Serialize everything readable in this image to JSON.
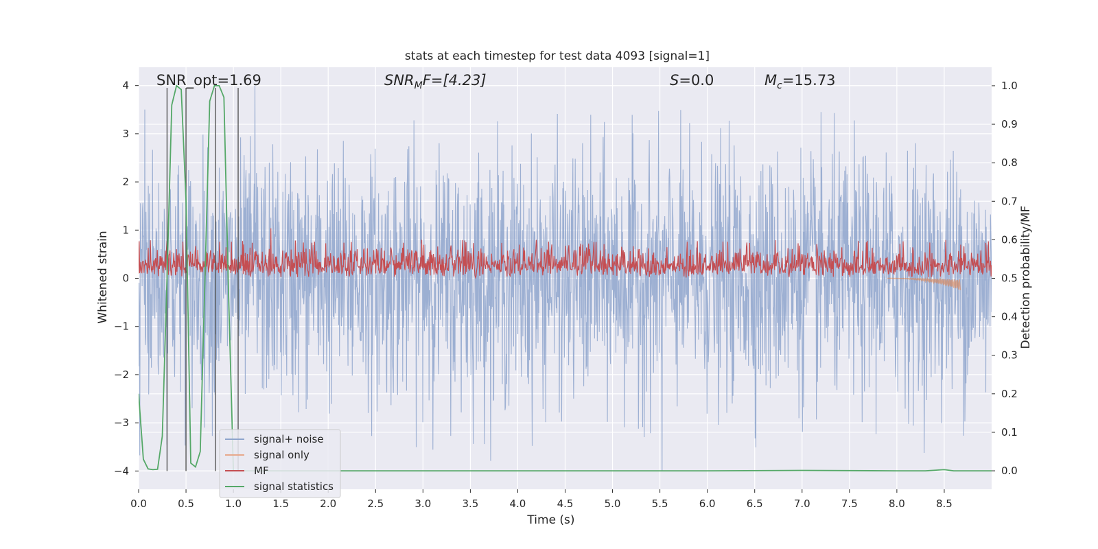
{
  "chart_data": {
    "type": "line",
    "title": "stats at each timestep for test data 4093 [signal=1]",
    "xlabel": "Time (s)",
    "ylabel": "Whitened strain",
    "ylabel_right": "Detection probability/MF",
    "xlim": [
      0.0,
      9.0
    ],
    "ylim": [
      -4.38,
      4.38
    ],
    "ylim_right": [
      -0.048,
      1.048
    ],
    "xticks": [
      "0.0",
      "0.5",
      "1.0",
      "1.5",
      "2.0",
      "2.5",
      "3.0",
      "3.5",
      "4.0",
      "4.5",
      "5.0",
      "5.5",
      "6.0",
      "6.5",
      "7.0",
      "7.5",
      "8.0",
      "8.5"
    ],
    "yticks": [
      "4",
      "3",
      "2",
      "1",
      "0",
      "−1",
      "−2",
      "−3",
      "−4"
    ],
    "yticks_right": [
      "1.0",
      "0.9",
      "0.8",
      "0.7",
      "0.6",
      "0.5",
      "0.4",
      "0.3",
      "0.2",
      "0.1",
      "0.0"
    ],
    "annotations": {
      "snr_opt": "SNR_opt=1.69",
      "snr_mf_label": "SNR",
      "snr_mf_sub": "M",
      "snr_mf_value": "F=[4.23]",
      "s_label": "S",
      "s_value": "=0.0",
      "mc_label": "M",
      "mc_sub": "c",
      "mc_value": "=15.73"
    },
    "vlines_x": [
      0.3,
      0.5,
      0.81,
      1.05
    ],
    "series": [
      {
        "name": "signal+ noise",
        "color": "#8ea4cc",
        "kind": "noise",
        "amplitude": 1.25,
        "peak": 4.0,
        "trough": -4.0
      },
      {
        "name": "signal only",
        "color": "#dd8452",
        "kind": "chirp",
        "x_start": 7.9,
        "x_end": 8.67,
        "min": -0.25
      },
      {
        "name": "MF",
        "color": "#c44e52",
        "kind": "mf",
        "axis": "right",
        "base": 0.5,
        "typical_max": 0.6,
        "peak": 0.63
      },
      {
        "name": "signal statistics",
        "color": "#55a868",
        "axis": "right",
        "x": [
          0.0,
          0.05,
          0.1,
          0.15,
          0.2,
          0.25,
          0.3,
          0.35,
          0.4,
          0.45,
          0.5,
          0.55,
          0.6,
          0.65,
          0.7,
          0.75,
          0.8,
          0.85,
          0.9,
          0.95,
          1.0,
          1.05,
          1.1,
          1.15,
          1.2,
          1.5,
          2.0,
          3.0,
          4.0,
          5.0,
          6.0,
          7.0,
          8.0,
          8.3,
          8.5,
          8.6,
          9.0
        ],
        "y": [
          0.2,
          0.03,
          0.005,
          0.003,
          0.004,
          0.09,
          0.5,
          0.95,
          1.0,
          0.99,
          0.7,
          0.02,
          0.01,
          0.05,
          0.5,
          0.96,
          1.0,
          1.0,
          0.97,
          0.45,
          0.0,
          0.0,
          0.0,
          0.0,
          0.0,
          0.0,
          0.0,
          0.0,
          0.0,
          0.0,
          0.0,
          0.001,
          0.0,
          0.0,
          0.003,
          0.0,
          0.0
        ]
      }
    ],
    "legend": {
      "location": "lower-left",
      "entries": [
        "signal+ noise",
        "signal only",
        "MF",
        "signal statistics"
      ]
    },
    "grid": true
  }
}
